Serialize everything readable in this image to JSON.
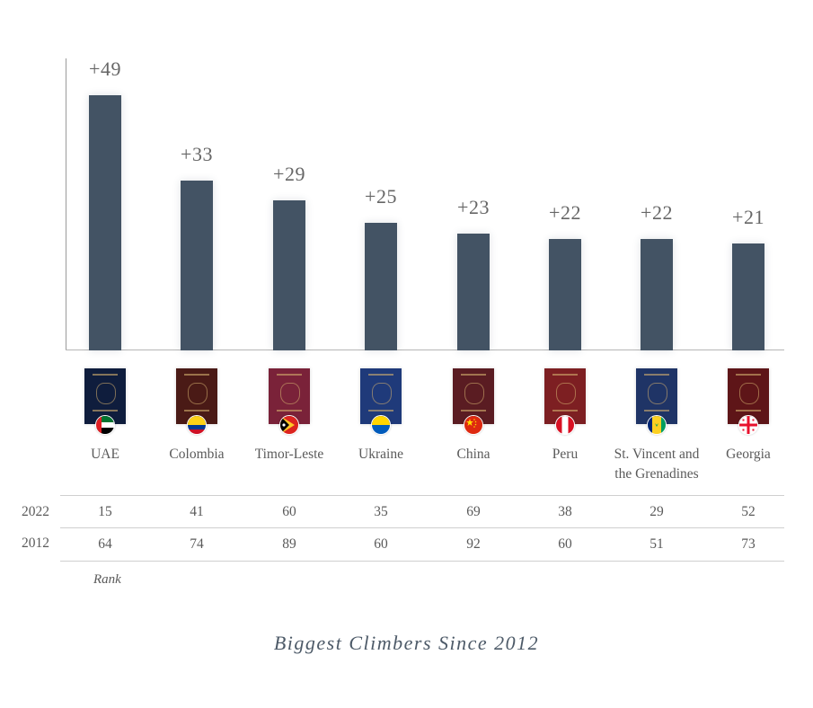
{
  "title": "Biggest Climbers Since 2012",
  "rank_label": "Rank",
  "row_labels": {
    "y2022": "2022",
    "y2012": "2012"
  },
  "colors": {
    "bar": "#435364",
    "text": "#5a5a5a",
    "title": "#4d5a68"
  },
  "countries": [
    {
      "name": "UAE",
      "gain": "+49",
      "rank2022": "15",
      "rank2012": "64",
      "passport_color": "#0f1d3d",
      "flag": "uae-flag-icon"
    },
    {
      "name": "Colombia",
      "gain": "+33",
      "rank2022": "41",
      "rank2012": "74",
      "passport_color": "#4a1a16",
      "flag": "colombia-flag-icon"
    },
    {
      "name": "Timor-Leste",
      "gain": "+29",
      "rank2022": "60",
      "rank2012": "89",
      "passport_color": "#7a2239",
      "flag": "timor-leste-flag-icon"
    },
    {
      "name": "Ukraine",
      "gain": "+25",
      "rank2022": "35",
      "rank2012": "60",
      "passport_color": "#1f3a7a",
      "flag": "ukraine-flag-icon"
    },
    {
      "name": "China",
      "gain": "+23",
      "rank2022": "69",
      "rank2012": "92",
      "passport_color": "#5a1c22",
      "flag": "china-flag-icon"
    },
    {
      "name": "Peru",
      "gain": "+22",
      "rank2022": "38",
      "rank2012": "60",
      "passport_color": "#7d1f22",
      "flag": "peru-flag-icon"
    },
    {
      "name": "St. Vincent and the Grenadines",
      "name_line1": "St. Vincent and",
      "name_line2": "the Grenadines",
      "gain": "+22",
      "rank2022": "29",
      "rank2012": "51",
      "passport_color": "#1f3466",
      "flag": "st-vincent-flag-icon"
    },
    {
      "name": "Georgia",
      "gain": "+21",
      "rank2022": "52",
      "rank2012": "73",
      "passport_color": "#5e1518",
      "flag": "georgia-flag-icon"
    }
  ],
  "chart_data": {
    "type": "bar",
    "title": "Biggest Climbers Since 2012",
    "xlabel": "",
    "ylabel": "",
    "categories": [
      "UAE",
      "Colombia",
      "Timor-Leste",
      "Ukraine",
      "China",
      "Peru",
      "St. Vincent and the Grenadines",
      "Georgia"
    ],
    "values": [
      49,
      33,
      29,
      25,
      23,
      22,
      22,
      21
    ],
    "data_labels": [
      "+49",
      "+33",
      "+29",
      "+25",
      "+23",
      "+22",
      "+22",
      "+21"
    ],
    "table": {
      "row_header": "Rank",
      "rows": [
        {
          "label": "2022",
          "values": [
            15,
            41,
            60,
            35,
            69,
            38,
            29,
            52
          ]
        },
        {
          "label": "2012",
          "values": [
            64,
            74,
            89,
            60,
            92,
            60,
            51,
            73
          ]
        }
      ]
    },
    "grid": false,
    "legend": null
  }
}
